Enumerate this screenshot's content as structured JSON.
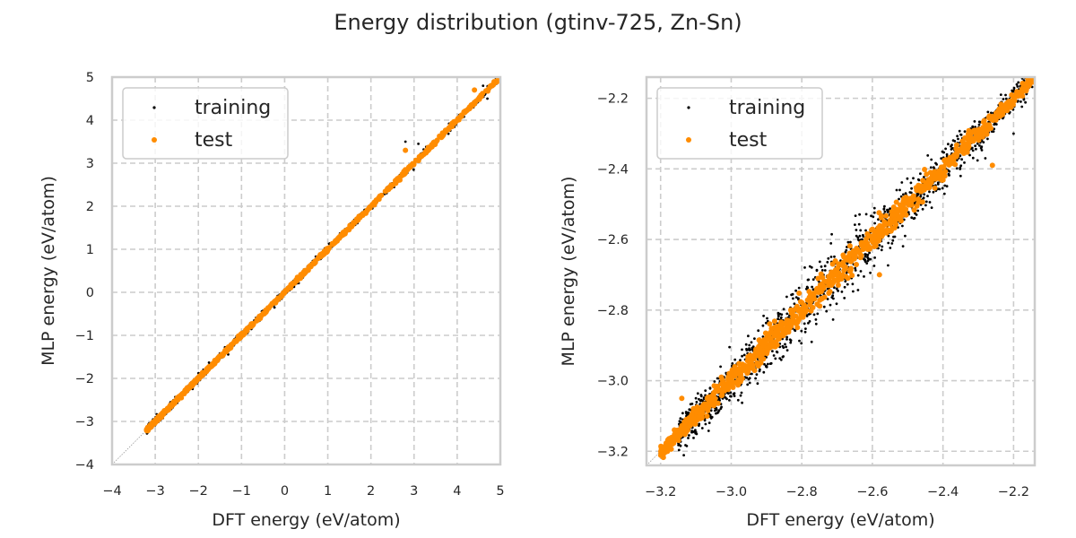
{
  "figure": {
    "title": "Energy distribution (gtinv-725, Zn-Sn)"
  },
  "colors": {
    "training": "#000000",
    "test": "#ff8c00",
    "grid": "#cccccc",
    "spine": "#cccccc",
    "diagonal": "#999999"
  },
  "chart_data": [
    {
      "type": "scatter",
      "title": "",
      "xlabel": "DFT energy (eV/atom)",
      "ylabel": "MLP energy (eV/atom)",
      "xlim": [
        -4,
        5
      ],
      "ylim": [
        -4,
        5
      ],
      "xticks": [
        -4,
        -3,
        -2,
        -1,
        0,
        1,
        2,
        3,
        4,
        5
      ],
      "yticks": [
        -4,
        -3,
        -2,
        -1,
        0,
        1,
        2,
        3,
        4,
        5
      ],
      "xtick_labels": [
        "−4",
        "−3",
        "−2",
        "−1",
        "0",
        "1",
        "2",
        "3",
        "4",
        "5"
      ],
      "ytick_labels": [
        "−4",
        "−3",
        "−2",
        "−1",
        "0",
        "1",
        "2",
        "3",
        "4",
        "5"
      ],
      "grid": true,
      "legend": {
        "placement": "upper-left",
        "entries": [
          "training",
          "test"
        ]
      },
      "diagonal": {
        "from": -4,
        "to": 5,
        "style": "dotted"
      },
      "series": [
        {
          "name": "training",
          "note": "dense points along y=x from about -3.2 to 5",
          "range": [
            -3.2,
            4.95
          ],
          "noise": 0.04,
          "count": 900,
          "outliers": [
            [
              2.8,
              3.5
            ],
            [
              4.7,
              4.5
            ],
            [
              3.1,
              3.45
            ],
            [
              4.6,
              4.8
            ]
          ]
        },
        {
          "name": "test",
          "note": "dense points along y=x from about -3.2 to 5",
          "range": [
            -3.2,
            4.95
          ],
          "noise": 0.02,
          "count": 700,
          "outliers": [
            [
              2.8,
              3.3
            ],
            [
              4.4,
              4.7
            ]
          ]
        }
      ]
    },
    {
      "type": "scatter",
      "title": "",
      "xlabel": "DFT energy (eV/atom)",
      "ylabel": "MLP energy (eV/atom)",
      "xlim": [
        -3.24,
        -2.14
      ],
      "ylim": [
        -3.24,
        -2.14
      ],
      "xticks": [
        -3.2,
        -3.0,
        -2.8,
        -2.6,
        -2.4,
        -2.2
      ],
      "yticks": [
        -3.2,
        -3.0,
        -2.8,
        -2.6,
        -2.4,
        -2.2
      ],
      "xtick_labels": [
        "−3.2",
        "−3.0",
        "−2.8",
        "−2.6",
        "−2.4",
        "−2.2"
      ],
      "ytick_labels": [
        "−3.2",
        "−3.0",
        "−2.8",
        "−2.6",
        "−2.4",
        "−2.2"
      ],
      "grid": true,
      "legend": {
        "placement": "upper-left",
        "entries": [
          "training",
          "test"
        ]
      },
      "diagonal": {
        "from": -3.24,
        "to": -2.14,
        "style": "dotted"
      },
      "series": [
        {
          "name": "training",
          "note": "points scattered around y=x from about -3.15 to -2.14",
          "range": [
            -3.15,
            -2.14
          ],
          "noise": 0.025,
          "count": 1400,
          "outliers": [
            [
              -3.1,
              -3.05
            ],
            [
              -2.35,
              -2.42
            ],
            [
              -2.2,
              -2.3
            ],
            [
              -2.28,
              -2.37
            ]
          ]
        },
        {
          "name": "test",
          "note": "points along y=x from about -3.2 to -2.14",
          "range": [
            -3.2,
            -2.14
          ],
          "noise": 0.012,
          "count": 900,
          "outliers": [
            [
              -2.26,
              -2.39
            ],
            [
              -3.14,
              -3.05
            ],
            [
              -2.58,
              -2.7
            ],
            [
              -2.98,
              -2.97
            ]
          ]
        }
      ]
    }
  ]
}
